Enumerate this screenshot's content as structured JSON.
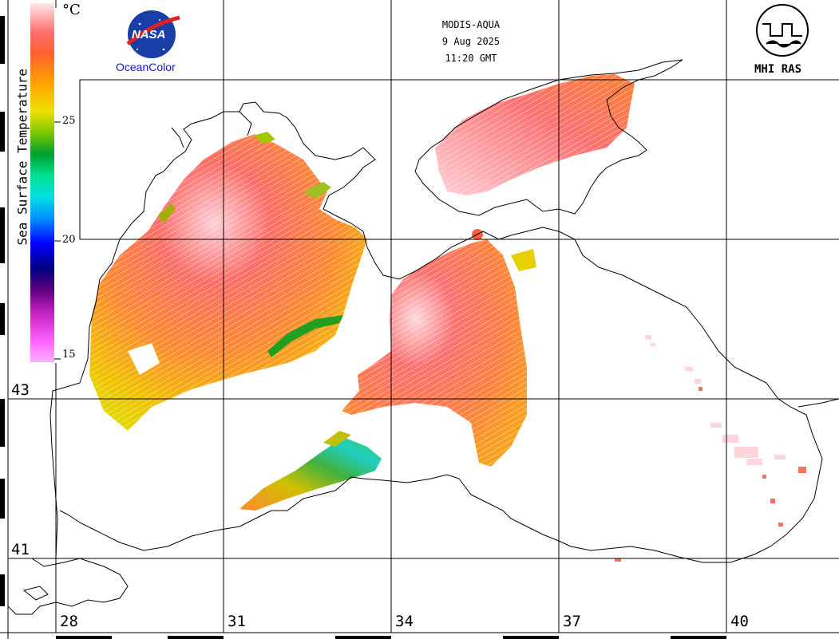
{
  "header": {
    "sensor": "MODIS-AQUA",
    "date": "9 Aug 2025",
    "time": "11:20 GMT"
  },
  "logos": {
    "nasa_text": "NASA",
    "oceancolor_text": "OceanColor",
    "mhi_text": "MHI RAS"
  },
  "colorbar": {
    "title": "Sea Surface Temperature",
    "unit": "°C",
    "ticks": [
      {
        "value": 25,
        "label": "25"
      },
      {
        "value": 20,
        "label": "20"
      },
      {
        "value": 15,
        "label": "15"
      }
    ],
    "range": [
      15,
      29
    ],
    "colors": [
      "#ff80ff",
      "#e040e0",
      "#a020a0",
      "#500090",
      "#000080",
      "#0000ff",
      "#0090ff",
      "#00d8e8",
      "#00e0a0",
      "#00b040",
      "#10a010",
      "#80c800",
      "#e8d800",
      "#ffb000",
      "#ff8020",
      "#ff6060",
      "#f08080",
      "#ffd0d0",
      "#ffffff"
    ]
  },
  "grid": {
    "latitudes": [
      {
        "value": 43,
        "label": "43"
      },
      {
        "value": 41,
        "label": "41"
      }
    ],
    "longitudes": [
      {
        "value": 28,
        "label": "28"
      },
      {
        "value": 31,
        "label": "31"
      },
      {
        "value": 34,
        "label": "34"
      },
      {
        "value": 37,
        "label": "37"
      },
      {
        "value": 40,
        "label": "40"
      }
    ]
  }
}
